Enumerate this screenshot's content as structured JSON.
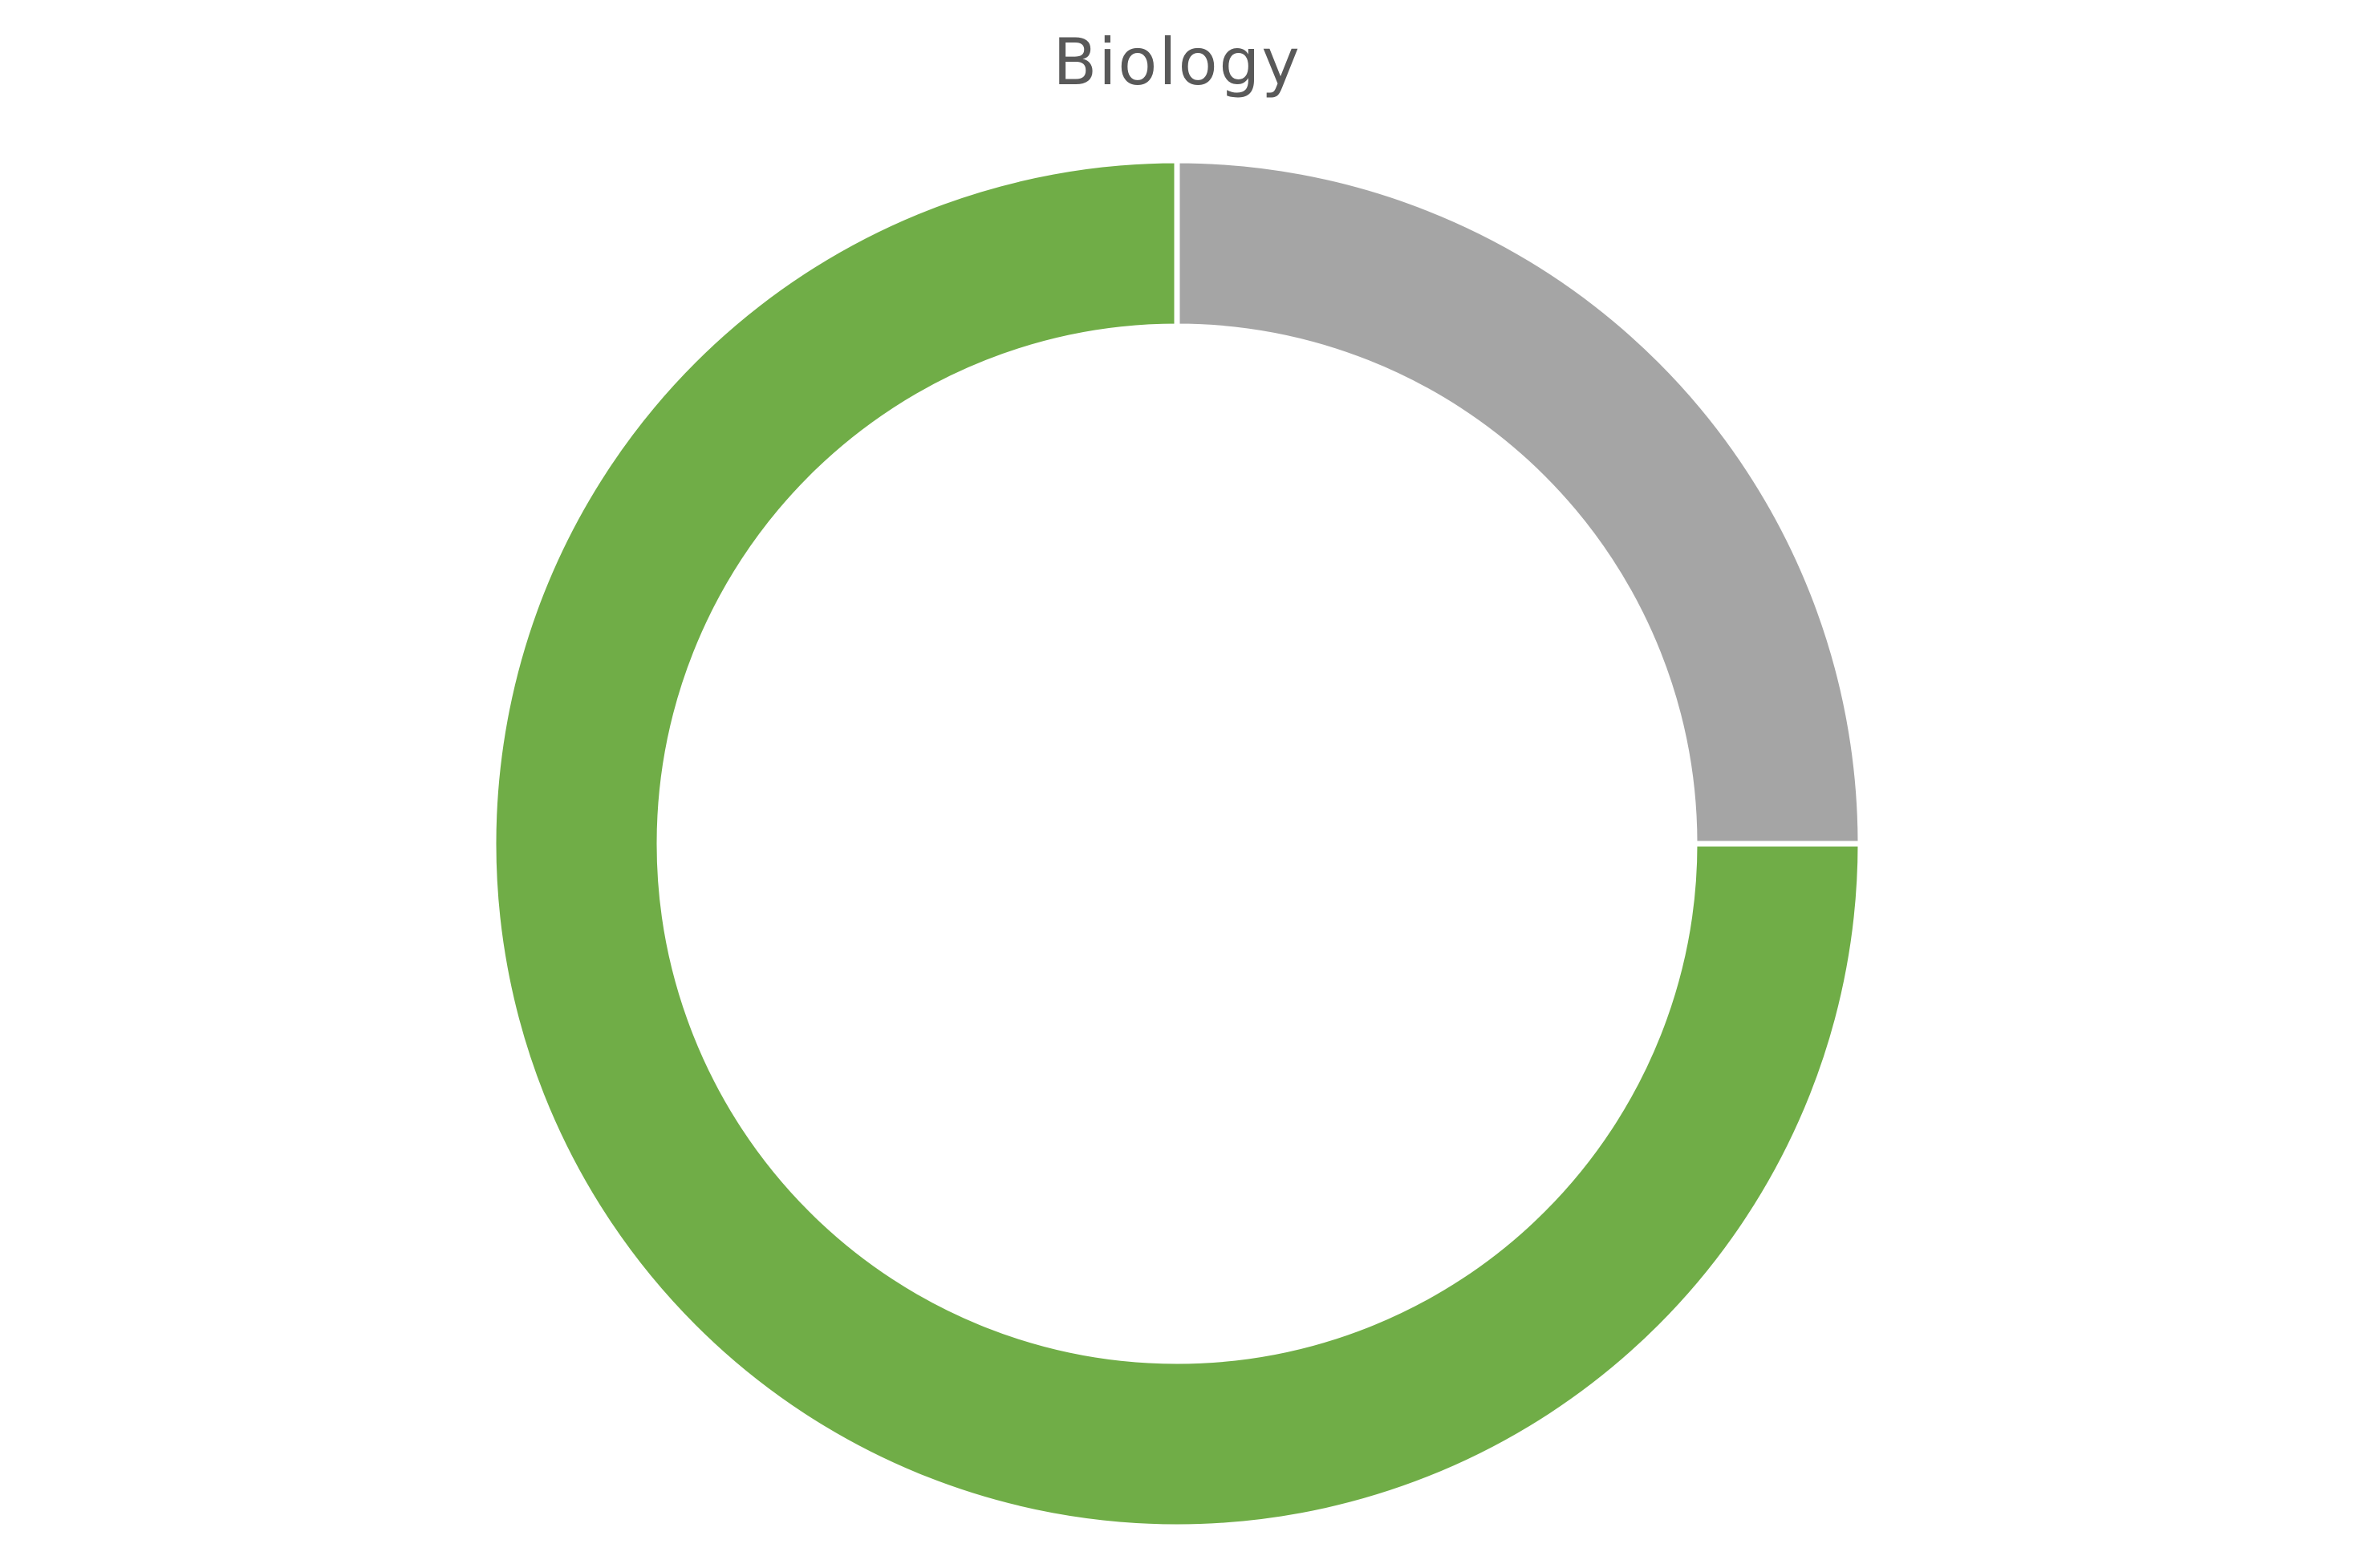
{
  "chart_data": {
    "type": "pie",
    "title": "Biology",
    "donut": true,
    "start_angle_deg": 0,
    "direction": "clockwise",
    "categories": [
      "",
      ""
    ],
    "values": [
      25,
      75
    ],
    "colors": [
      "#a5a5a5",
      "#70ad47"
    ],
    "separator_color": "#ffffff",
    "legend": "none"
  }
}
